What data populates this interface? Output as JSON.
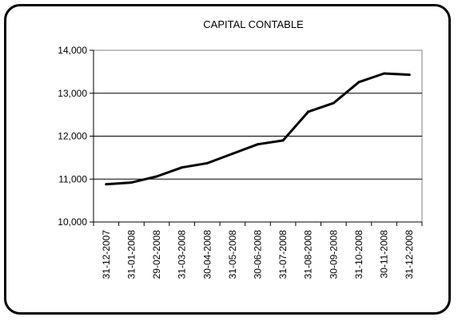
{
  "chart_data": {
    "type": "line",
    "title": "CAPITAL CONTABLE",
    "xlabel": "",
    "ylabel": "",
    "ylim": [
      10000,
      14000
    ],
    "yticks": [
      10000,
      11000,
      12000,
      13000,
      14000
    ],
    "ytick_labels": [
      "10,000",
      "11,000",
      "12,000",
      "13,000",
      "14,000"
    ],
    "grid": "horizontal",
    "categories": [
      "31-12-2007",
      "31-01-2008",
      "29-02-2008",
      "31-03-2008",
      "30-04-2008",
      "31-05-2008",
      "30-06-2008",
      "31-07-2008",
      "31-08-2008",
      "30-09-2008",
      "31-10-2008",
      "30-11-2008",
      "31-12-2008"
    ],
    "series": [
      {
        "values": [
          10880,
          10920,
          11060,
          11270,
          11370,
          11590,
          11810,
          11900,
          12570,
          12770,
          13260,
          13460,
          13430
        ],
        "color": "#000000"
      }
    ]
  }
}
